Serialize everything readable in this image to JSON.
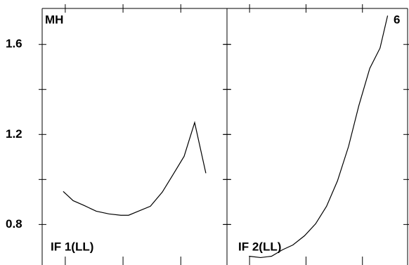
{
  "chart_data": [
    {
      "type": "line",
      "title": "MH",
      "annotation": "IF 1(LL)",
      "xlim": [
        -2,
        14
      ],
      "xticks": [
        0,
        5,
        10
      ],
      "ylim": [
        0.62,
        1.76
      ],
      "yticks": [
        0.8,
        1.2,
        1.6
      ],
      "minor_yticks": [
        1.0,
        1.4
      ],
      "series": [
        {
          "color": "#000000",
          "x": [
            -0.18,
            0.68,
            1.65,
            2.68,
            3.78,
            4.81,
            5.48,
            6.33,
            7.37,
            8.4,
            9.37,
            10.29,
            11.2,
            12.17
          ],
          "values": [
            0.947,
            0.906,
            0.884,
            0.859,
            0.847,
            0.841,
            0.841,
            0.859,
            0.881,
            0.944,
            1.025,
            1.103,
            1.253,
            1.028
          ]
        }
      ]
    },
    {
      "type": "line",
      "title": "6",
      "annotation": "IF 2(LL)",
      "xlim": [
        -2,
        14
      ],
      "xticks": [
        0,
        5,
        10
      ],
      "ylim": [
        0.62,
        1.76
      ],
      "yticks": [
        0.8,
        1.2,
        1.6
      ],
      "minor_yticks": [
        1.0,
        1.4
      ],
      "series": [
        {
          "color": "#000000",
          "x": [
            -0.05,
            0.98,
            1.95,
            2.93,
            3.84,
            4.87,
            5.85,
            6.82,
            7.79,
            8.77,
            9.68,
            10.65,
            11.56,
            12.23
          ],
          "values": [
            0.659,
            0.653,
            0.659,
            0.688,
            0.709,
            0.75,
            0.803,
            0.881,
            0.994,
            1.147,
            1.328,
            1.494,
            1.584,
            1.728
          ]
        }
      ]
    }
  ]
}
